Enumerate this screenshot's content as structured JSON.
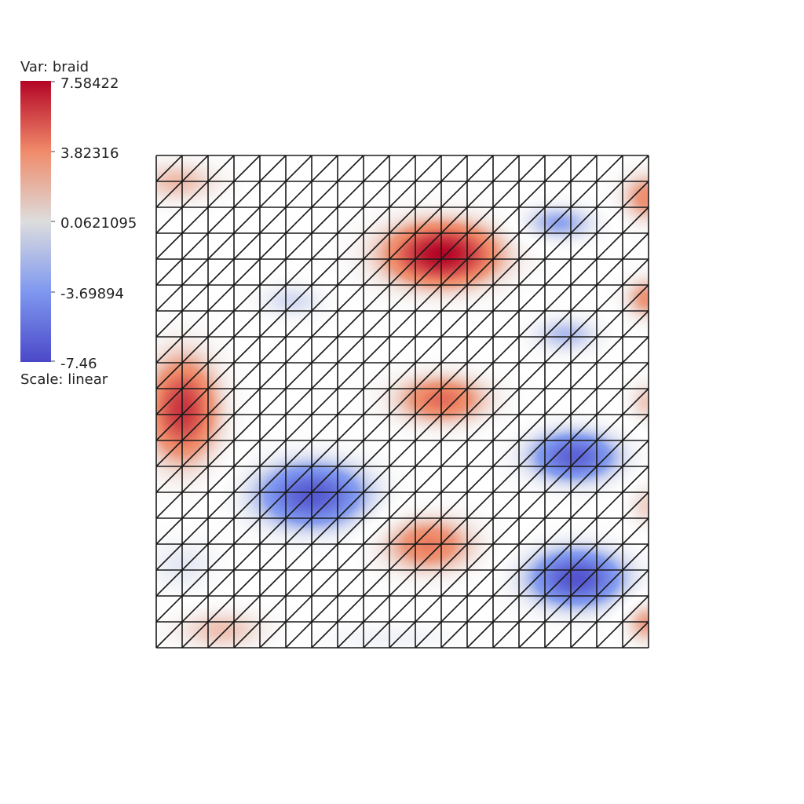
{
  "chart_data": {
    "type": "heatmap",
    "title": "",
    "variable_label": "Var: braid",
    "scale_label": "Scale: linear",
    "colorbar": {
      "min": -7.46,
      "max": 7.58422,
      "ticks": [
        "7.58422",
        "3.82316",
        "0.0621095",
        "-3.69894",
        "-7.46"
      ],
      "colors": [
        "#b40426",
        "#f08a69",
        "#dddddd",
        "#7f98f0",
        "#4b48c8"
      ]
    },
    "mesh": {
      "cells_x": 19,
      "cells_y": 19,
      "triangulated": true,
      "diagonal": "bottom-left-to-top-right"
    },
    "grid": true,
    "blobs": [
      {
        "x": 11,
        "y": 15.2,
        "value": 7.58,
        "sx": 1.6,
        "sy": 0.9
      },
      {
        "x": 1.0,
        "y": 9.2,
        "value": 6.2,
        "sx": 1.0,
        "sy": 1.5
      },
      {
        "x": 0.8,
        "y": 18.0,
        "value": 2.5,
        "sx": 1.2,
        "sy": 0.6
      },
      {
        "x": 11.0,
        "y": 9.6,
        "value": 4.6,
        "sx": 1.3,
        "sy": 0.7
      },
      {
        "x": 10.5,
        "y": 4.0,
        "value": 4.2,
        "sx": 1.3,
        "sy": 0.8
      },
      {
        "x": 18.9,
        "y": 17.4,
        "value": 3.6,
        "sx": 0.7,
        "sy": 0.7
      },
      {
        "x": 18.9,
        "y": 13.5,
        "value": 3.4,
        "sx": 0.6,
        "sy": 0.6
      },
      {
        "x": 18.9,
        "y": 9.5,
        "value": 2.2,
        "sx": 0.5,
        "sy": 0.6
      },
      {
        "x": 18.9,
        "y": 5.5,
        "value": 2.0,
        "sx": 0.5,
        "sy": 0.6
      },
      {
        "x": 18.9,
        "y": 1.0,
        "value": 3.2,
        "sx": 0.6,
        "sy": 0.6
      },
      {
        "x": 2.5,
        "y": 0.7,
        "value": 2.4,
        "sx": 1.3,
        "sy": 0.6
      },
      {
        "x": 6.0,
        "y": 5.9,
        "value": -6.6,
        "sx": 1.5,
        "sy": 0.9
      },
      {
        "x": 16.1,
        "y": 7.4,
        "value": -6.2,
        "sx": 1.2,
        "sy": 0.7
      },
      {
        "x": 16.2,
        "y": 2.7,
        "value": -6.9,
        "sx": 1.3,
        "sy": 0.8
      },
      {
        "x": 15.5,
        "y": 16.4,
        "value": -3.2,
        "sx": 1.0,
        "sy": 0.5
      },
      {
        "x": 15.8,
        "y": 12.1,
        "value": -2.6,
        "sx": 0.9,
        "sy": 0.5
      },
      {
        "x": 5.2,
        "y": 13.4,
        "value": -1.8,
        "sx": 0.9,
        "sy": 0.5
      },
      {
        "x": 1.0,
        "y": 3.2,
        "value": -1.3,
        "sx": 1.0,
        "sy": 0.8
      },
      {
        "x": 9.0,
        "y": 0.4,
        "value": -0.9,
        "sx": 2.0,
        "sy": 0.4
      }
    ]
  }
}
